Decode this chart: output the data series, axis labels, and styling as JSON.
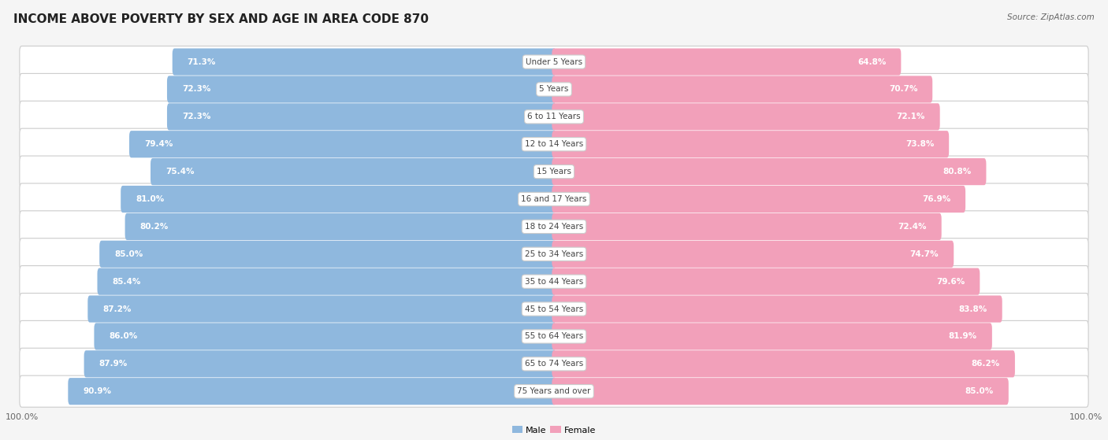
{
  "title": "INCOME ABOVE POVERTY BY SEX AND AGE IN AREA CODE 870",
  "source": "Source: ZipAtlas.com",
  "categories": [
    "Under 5 Years",
    "5 Years",
    "6 to 11 Years",
    "12 to 14 Years",
    "15 Years",
    "16 and 17 Years",
    "18 to 24 Years",
    "25 to 34 Years",
    "35 to 44 Years",
    "45 to 54 Years",
    "55 to 64 Years",
    "65 to 74 Years",
    "75 Years and over"
  ],
  "male_values": [
    71.3,
    72.3,
    72.3,
    79.4,
    75.4,
    81.0,
    80.2,
    85.0,
    85.4,
    87.2,
    86.0,
    87.9,
    90.9
  ],
  "female_values": [
    64.8,
    70.7,
    72.1,
    73.8,
    80.8,
    76.9,
    72.4,
    74.7,
    79.6,
    83.8,
    81.9,
    86.2,
    85.0
  ],
  "male_color": "#8fb8de",
  "female_color": "#f2a0ba",
  "row_bg_color": "#e8e8e8",
  "bar_bg_color": "#f5f5f5",
  "title_fontsize": 11,
  "label_fontsize": 7.5,
  "cat_fontsize": 7.5,
  "tick_fontsize": 8,
  "source_fontsize": 7.5
}
